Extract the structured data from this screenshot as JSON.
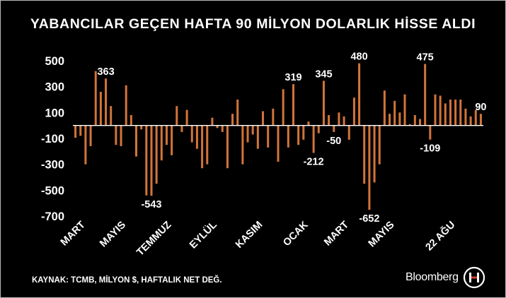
{
  "title": "YABANCILAR GEÇEN HAFTA 90 MİLYON DOLARLIK HİSSE ALDI",
  "source": "KAYNAK: TCMB, MİLYON $, HAFTALIK NET DEĞ.",
  "brand": {
    "name": "Bloomberg",
    "logo_icon": "bloomberg-ht-logo-icon"
  },
  "colors": {
    "background": "#000000",
    "bar": "#d2743a",
    "text": "#ffffff",
    "axis": "#ffffff"
  },
  "chart_data": {
    "type": "bar",
    "title": "YABANCILAR GEÇEN HAFTA 90 MİLYON DOLARLIK HİSSE ALDI",
    "xlabel": "",
    "ylabel": "",
    "ylim": [
      -700,
      500
    ],
    "yticks": [
      500,
      300,
      100,
      -100,
      -300,
      -500,
      -700
    ],
    "ytick_labels": [
      "500",
      "300",
      "100",
      "-100",
      "-300",
      "-500",
      "-700"
    ],
    "x_tick_labels": [
      {
        "label": "MART",
        "index": 2
      },
      {
        "label": "MAYIS",
        "index": 10
      },
      {
        "label": "TEMMUZ",
        "index": 19
      },
      {
        "label": "EYLÜL",
        "index": 28
      },
      {
        "label": "KASIM",
        "index": 37
      },
      {
        "label": "OCAK",
        "index": 46
      },
      {
        "label": "MART",
        "index": 54
      },
      {
        "label": "MAYIS",
        "index": 63
      },
      {
        "label": "22 AĞU",
        "index": 75
      }
    ],
    "series": [
      {
        "values": [
          -95,
          -80,
          -300,
          -160,
          420,
          260,
          363,
          150,
          -150,
          -160,
          310,
          80,
          -240,
          -30,
          -540,
          -543,
          -450,
          -270,
          -150,
          -230,
          150,
          -50,
          120,
          -130,
          -180,
          -330,
          -300,
          60,
          -20,
          -50,
          -330,
          90,
          200,
          -300,
          -130,
          -70,
          -180,
          110,
          -170,
          130,
          -280,
          280,
          -170,
          319,
          -150,
          -110,
          30,
          -212,
          -60,
          345,
          80,
          -50,
          100,
          70,
          -110,
          215,
          480,
          -450,
          -652,
          -440,
          -300,
          270,
          90,
          190,
          100,
          240,
          10,
          80,
          50,
          475,
          -109,
          240,
          230,
          170,
          200,
          200,
          200,
          130,
          70,
          120,
          90
        ]
      }
    ],
    "annotations": [
      {
        "index": 6,
        "text": "363"
      },
      {
        "index": 15,
        "text": "-543"
      },
      {
        "index": 43,
        "text": "319"
      },
      {
        "index": 47,
        "text": "-212"
      },
      {
        "index": 49,
        "text": "345"
      },
      {
        "index": 51,
        "text": "-50"
      },
      {
        "index": 56,
        "text": "480"
      },
      {
        "index": 58,
        "text": "-652"
      },
      {
        "index": 69,
        "text": "475"
      },
      {
        "index": 70,
        "text": "-109"
      },
      {
        "index": 80,
        "text": "90"
      }
    ]
  }
}
